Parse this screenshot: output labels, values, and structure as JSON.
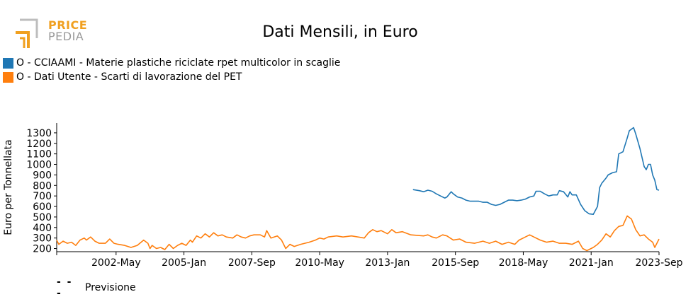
{
  "logo": {
    "line1": "PRICE",
    "line2": "PEDIA",
    "colors": {
      "accent": "#f0a020",
      "gray": "#9a9a9a"
    }
  },
  "forecast_note": {
    "symbol": "- - -",
    "label": "Previsione"
  },
  "chart_data": {
    "type": "line",
    "title": "Dati Mensili, in Euro",
    "xlabel": "",
    "ylabel": "Euro per Tonnellata",
    "x_range": [
      "2000-01",
      "2023-09"
    ],
    "ylim": [
      170,
      1380
    ],
    "yticks": [
      200,
      300,
      400,
      500,
      600,
      700,
      800,
      900,
      1000,
      1100,
      1200,
      1300
    ],
    "xticks": [
      {
        "date": "2002-05",
        "label": "2002-May"
      },
      {
        "date": "2005-01",
        "label": "2005-Jan"
      },
      {
        "date": "2007-09",
        "label": "2007-Sep"
      },
      {
        "date": "2010-05",
        "label": "2010-May"
      },
      {
        "date": "2013-01",
        "label": "2013-Jan"
      },
      {
        "date": "2015-09",
        "label": "2015-Sep"
      },
      {
        "date": "2018-05",
        "label": "2018-May"
      },
      {
        "date": "2021-01",
        "label": "2021-Jan"
      },
      {
        "date": "2023-09",
        "label": "2023-Sep"
      }
    ],
    "grid": false,
    "legend_position": "top-left",
    "series": [
      {
        "name": "O - CCIAAMI - Materie plastiche riciclate rpet multicolor in scaglie",
        "color": "#1f77b4",
        "points": [
          [
            "2014-01",
            760
          ],
          [
            "2014-04",
            750
          ],
          [
            "2014-06",
            740
          ],
          [
            "2014-08",
            755
          ],
          [
            "2014-10",
            745
          ],
          [
            "2014-12",
            720
          ],
          [
            "2015-02",
            700
          ],
          [
            "2015-04",
            680
          ],
          [
            "2015-05",
            690
          ],
          [
            "2015-07",
            740
          ],
          [
            "2015-08",
            720
          ],
          [
            "2015-10",
            690
          ],
          [
            "2015-12",
            680
          ],
          [
            "2016-02",
            660
          ],
          [
            "2016-04",
            650
          ],
          [
            "2016-06",
            650
          ],
          [
            "2016-08",
            650
          ],
          [
            "2016-10",
            640
          ],
          [
            "2016-12",
            640
          ],
          [
            "2017-02",
            620
          ],
          [
            "2017-04",
            610
          ],
          [
            "2017-06",
            620
          ],
          [
            "2017-08",
            640
          ],
          [
            "2017-10",
            660
          ],
          [
            "2017-12",
            660
          ],
          [
            "2018-02",
            655
          ],
          [
            "2018-04",
            660
          ],
          [
            "2018-06",
            670
          ],
          [
            "2018-08",
            690
          ],
          [
            "2018-10",
            700
          ],
          [
            "2018-11",
            745
          ],
          [
            "2019-01",
            745
          ],
          [
            "2019-03",
            720
          ],
          [
            "2019-05",
            700
          ],
          [
            "2019-07",
            710
          ],
          [
            "2019-09",
            710
          ],
          [
            "2019-10",
            750
          ],
          [
            "2019-12",
            740
          ],
          [
            "2020-02",
            690
          ],
          [
            "2020-03",
            740
          ],
          [
            "2020-04",
            710
          ],
          [
            "2020-06",
            710
          ],
          [
            "2020-08",
            620
          ],
          [
            "2020-10",
            560
          ],
          [
            "2020-12",
            530
          ],
          [
            "2021-02",
            525
          ],
          [
            "2021-04",
            600
          ],
          [
            "2021-05",
            780
          ],
          [
            "2021-06",
            820
          ],
          [
            "2021-08",
            870
          ],
          [
            "2021-09",
            900
          ],
          [
            "2021-11",
            920
          ],
          [
            "2022-01",
            930
          ],
          [
            "2022-02",
            1100
          ],
          [
            "2022-04",
            1120
          ],
          [
            "2022-06",
            1250
          ],
          [
            "2022-07",
            1320
          ],
          [
            "2022-09",
            1350
          ],
          [
            "2022-10",
            1290
          ],
          [
            "2022-12",
            1150
          ],
          [
            "2023-02",
            980
          ],
          [
            "2023-03",
            950
          ],
          [
            "2023-04",
            1000
          ],
          [
            "2023-05",
            1000
          ],
          [
            "2023-06",
            900
          ],
          [
            "2023-07",
            850
          ],
          [
            "2023-08",
            760
          ],
          [
            "2023-09",
            755
          ]
        ]
      },
      {
        "name": "O - Dati Utente - Scarti di lavorazione del PET",
        "color": "#ff7f0e",
        "points": [
          [
            "2000-01",
            280
          ],
          [
            "2000-02",
            240
          ],
          [
            "2000-04",
            270
          ],
          [
            "2000-06",
            250
          ],
          [
            "2000-08",
            260
          ],
          [
            "2000-10",
            230
          ],
          [
            "2000-12",
            280
          ],
          [
            "2001-02",
            300
          ],
          [
            "2001-03",
            280
          ],
          [
            "2001-05",
            310
          ],
          [
            "2001-07",
            270
          ],
          [
            "2001-09",
            250
          ],
          [
            "2001-12",
            250
          ],
          [
            "2002-02",
            290
          ],
          [
            "2002-04",
            250
          ],
          [
            "2002-06",
            240
          ],
          [
            "2002-09",
            230
          ],
          [
            "2002-12",
            210
          ],
          [
            "2003-03",
            230
          ],
          [
            "2003-06",
            280
          ],
          [
            "2003-08",
            250
          ],
          [
            "2003-09",
            200
          ],
          [
            "2003-10",
            230
          ],
          [
            "2003-12",
            200
          ],
          [
            "2004-02",
            210
          ],
          [
            "2004-04",
            190
          ],
          [
            "2004-06",
            240
          ],
          [
            "2004-08",
            200
          ],
          [
            "2004-10",
            230
          ],
          [
            "2004-12",
            250
          ],
          [
            "2005-02",
            230
          ],
          [
            "2005-04",
            280
          ],
          [
            "2005-05",
            260
          ],
          [
            "2005-07",
            320
          ],
          [
            "2005-09",
            300
          ],
          [
            "2005-11",
            340
          ],
          [
            "2006-01",
            310
          ],
          [
            "2006-03",
            350
          ],
          [
            "2006-05",
            320
          ],
          [
            "2006-07",
            330
          ],
          [
            "2006-09",
            310
          ],
          [
            "2006-12",
            300
          ],
          [
            "2007-02",
            330
          ],
          [
            "2007-04",
            310
          ],
          [
            "2007-06",
            300
          ],
          [
            "2007-08",
            320
          ],
          [
            "2007-10",
            330
          ],
          [
            "2008-01",
            330
          ],
          [
            "2008-03",
            310
          ],
          [
            "2008-04",
            370
          ],
          [
            "2008-06",
            300
          ],
          [
            "2008-09",
            320
          ],
          [
            "2008-11",
            280
          ],
          [
            "2009-01",
            200
          ],
          [
            "2009-03",
            240
          ],
          [
            "2009-05",
            220
          ],
          [
            "2009-08",
            240
          ],
          [
            "2009-12",
            260
          ],
          [
            "2010-03",
            280
          ],
          [
            "2010-05",
            300
          ],
          [
            "2010-07",
            290
          ],
          [
            "2010-09",
            310
          ],
          [
            "2011-01",
            320
          ],
          [
            "2011-04",
            310
          ],
          [
            "2011-08",
            320
          ],
          [
            "2012-02",
            300
          ],
          [
            "2012-04",
            350
          ],
          [
            "2012-06",
            380
          ],
          [
            "2012-08",
            360
          ],
          [
            "2012-10",
            370
          ],
          [
            "2013-01",
            340
          ],
          [
            "2013-03",
            380
          ],
          [
            "2013-05",
            350
          ],
          [
            "2013-08",
            360
          ],
          [
            "2013-12",
            330
          ],
          [
            "2014-06",
            320
          ],
          [
            "2014-08",
            330
          ],
          [
            "2014-10",
            310
          ],
          [
            "2014-12",
            300
          ],
          [
            "2015-03",
            330
          ],
          [
            "2015-05",
            320
          ],
          [
            "2015-08",
            280
          ],
          [
            "2015-11",
            290
          ],
          [
            "2016-02",
            260
          ],
          [
            "2016-06",
            250
          ],
          [
            "2016-10",
            270
          ],
          [
            "2017-01",
            250
          ],
          [
            "2017-04",
            270
          ],
          [
            "2017-07",
            240
          ],
          [
            "2017-10",
            260
          ],
          [
            "2018-01",
            240
          ],
          [
            "2018-03",
            280
          ],
          [
            "2018-06",
            310
          ],
          [
            "2018-08",
            330
          ],
          [
            "2018-10",
            310
          ],
          [
            "2019-01",
            280
          ],
          [
            "2019-04",
            260
          ],
          [
            "2019-07",
            270
          ],
          [
            "2019-10",
            250
          ],
          [
            "2020-01",
            250
          ],
          [
            "2020-04",
            240
          ],
          [
            "2020-07",
            270
          ],
          [
            "2020-09",
            200
          ],
          [
            "2020-11",
            180
          ],
          [
            "2021-02",
            210
          ],
          [
            "2021-04",
            240
          ],
          [
            "2021-06",
            280
          ],
          [
            "2021-08",
            340
          ],
          [
            "2021-10",
            310
          ],
          [
            "2021-12",
            370
          ],
          [
            "2022-02",
            410
          ],
          [
            "2022-04",
            420
          ],
          [
            "2022-06",
            510
          ],
          [
            "2022-08",
            480
          ],
          [
            "2022-10",
            380
          ],
          [
            "2022-12",
            320
          ],
          [
            "2023-02",
            330
          ],
          [
            "2023-04",
            290
          ],
          [
            "2023-06",
            260
          ],
          [
            "2023-07",
            210
          ],
          [
            "2023-09",
            290
          ]
        ]
      }
    ]
  }
}
